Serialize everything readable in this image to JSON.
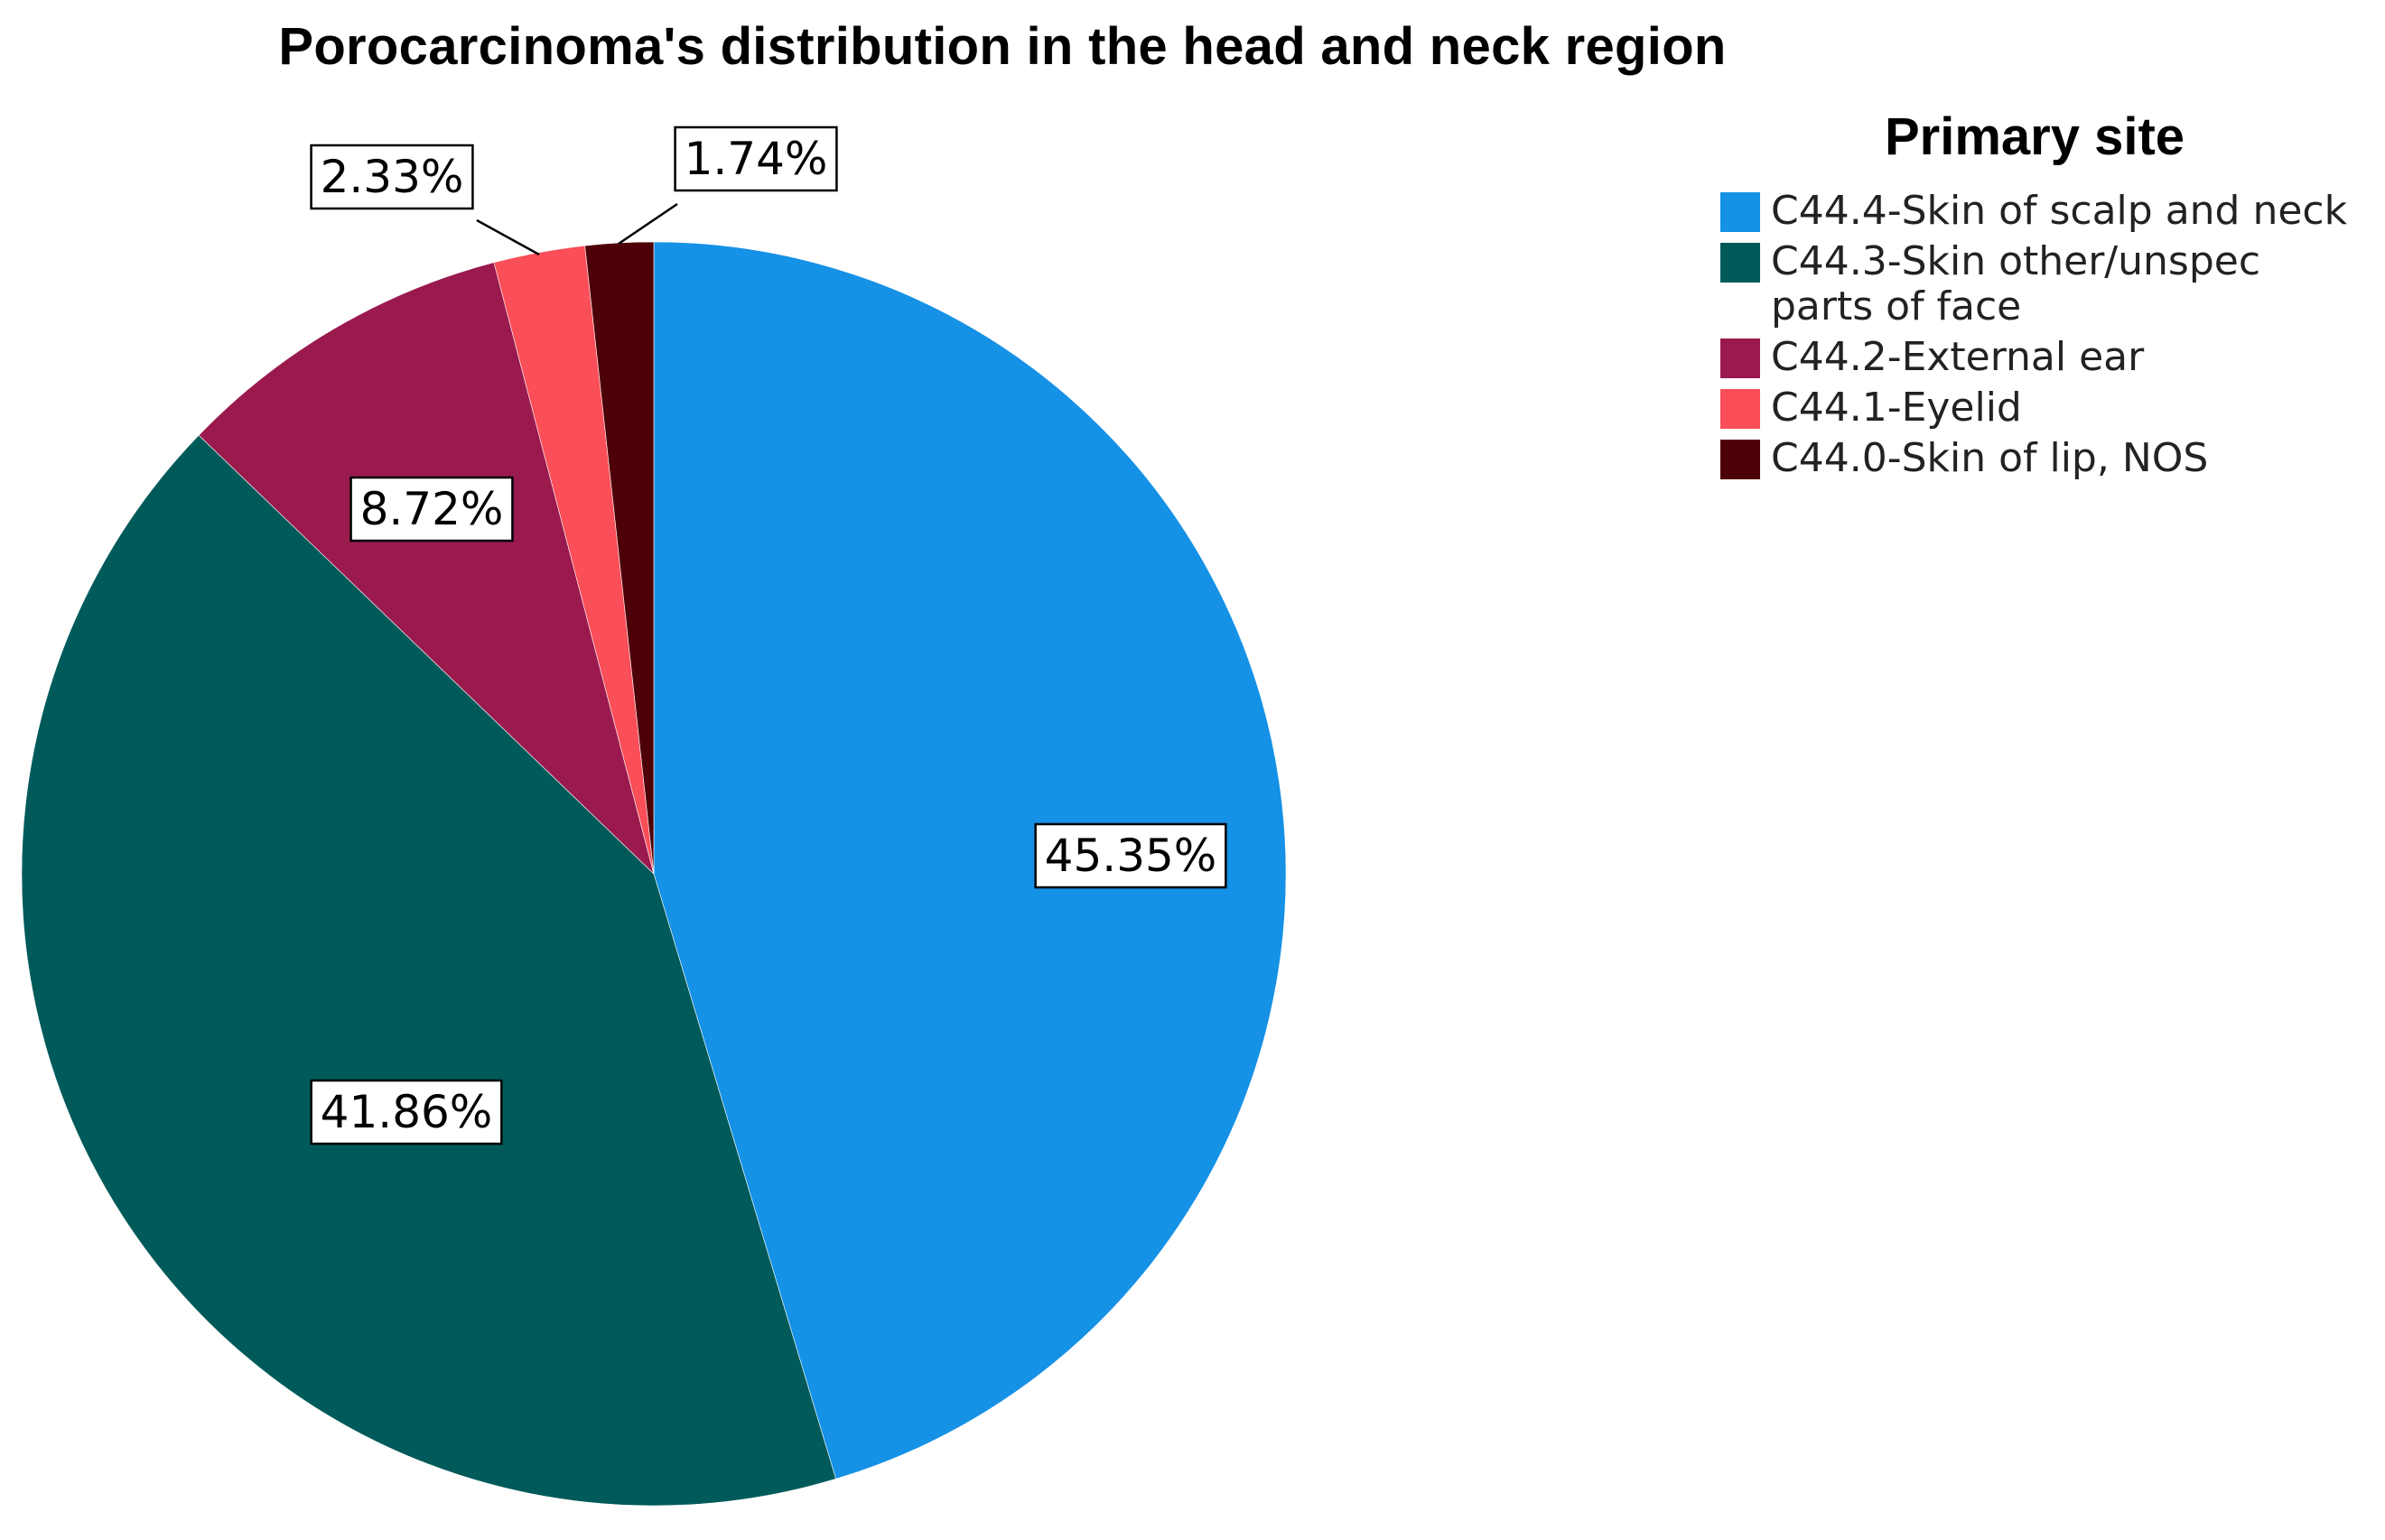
{
  "chart_data": {
    "type": "pie",
    "title": "Porocarcinoma's distribution in the head and neck region",
    "legend_title": "Primary site",
    "legend_position": "top-right",
    "start_angle_deg": 0,
    "direction": "clockwise",
    "slices": [
      {
        "label": "C44.4-Skin of scalp and neck",
        "value": 45.35,
        "display": "45.35%",
        "color": "#1591e6"
      },
      {
        "label": "C44.3-Skin other/unspec parts of face",
        "value": 41.86,
        "display": "41.86%",
        "color": "#005a5a"
      },
      {
        "label": "C44.2-External ear",
        "value": 8.72,
        "display": "8.72%",
        "color": "#9a1a4e"
      },
      {
        "label": "C44.1-Eyelid",
        "value": 2.33,
        "display": "2.33%",
        "color": "#fa4e58"
      },
      {
        "label": "C44.0-Skin of lip, NOS",
        "value": 1.74,
        "display": "1.74%",
        "color": "#4e0008"
      }
    ]
  }
}
